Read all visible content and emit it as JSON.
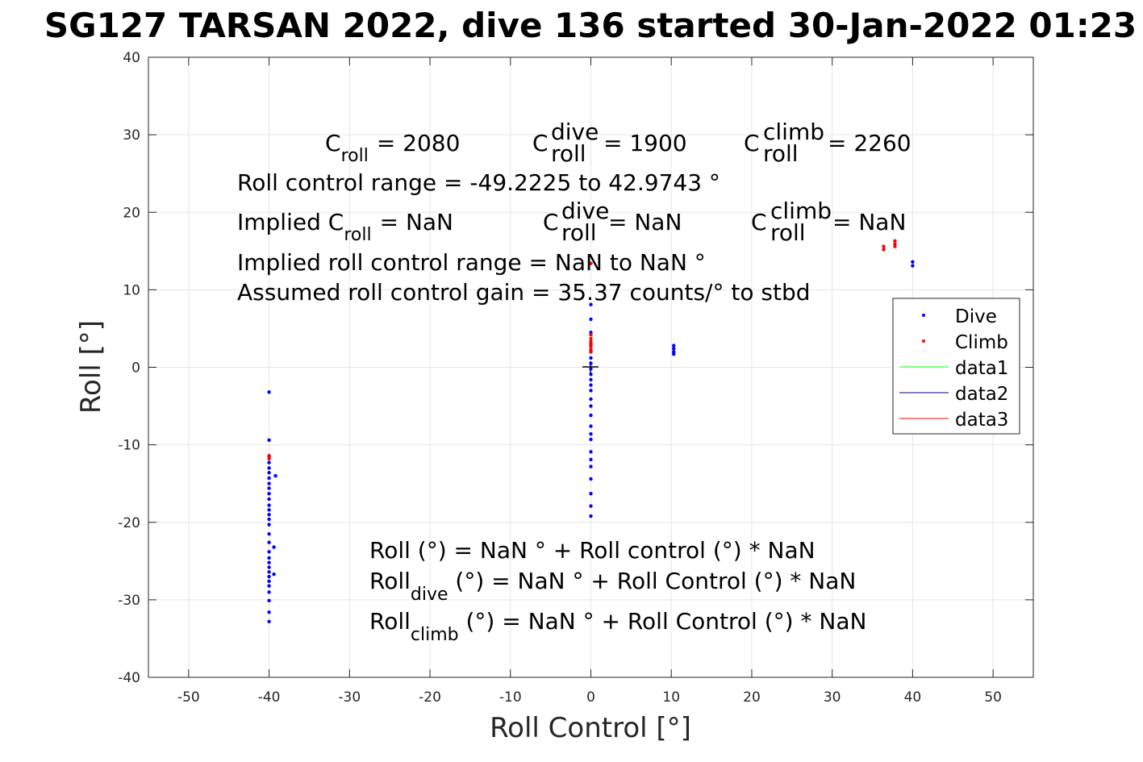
{
  "chart_data": {
    "type": "scatter",
    "title": "SG127 TARSAN 2022, dive 136 started 30-Jan-2022 01:23",
    "xlabel": "Roll Control [°]",
    "ylabel": "Roll [°]",
    "xlim": [
      -55,
      55
    ],
    "ylim": [
      -40,
      40
    ],
    "xticks": [
      -50,
      -40,
      -30,
      -20,
      -10,
      0,
      10,
      20,
      30,
      40,
      50
    ],
    "yticks": [
      -40,
      -30,
      -20,
      -10,
      0,
      10,
      20,
      30,
      40
    ],
    "grid": true,
    "legend_position": "right",
    "series": [
      {
        "name": "Dive",
        "color": "#0000ff",
        "marker": "point",
        "points": [
          [
            -40.0,
            -3.2
          ],
          [
            -40.0,
            -9.4
          ],
          [
            -40.0,
            -11.5
          ],
          [
            -40.0,
            -12.3
          ],
          [
            -40.0,
            -13.0
          ],
          [
            -40.0,
            -13.6
          ],
          [
            -40.0,
            -14.3
          ],
          [
            -40.0,
            -15.0
          ],
          [
            -40.0,
            -15.6
          ],
          [
            -40.0,
            -16.3
          ],
          [
            -40.0,
            -17.0
          ],
          [
            -40.0,
            -17.8
          ],
          [
            -40.0,
            -18.4
          ],
          [
            -40.0,
            -19.0
          ],
          [
            -40.0,
            -19.6
          ],
          [
            -40.0,
            -20.3
          ],
          [
            -40.0,
            -21.5
          ],
          [
            -40.0,
            -22.6
          ],
          [
            -40.0,
            -23.8
          ],
          [
            -40.0,
            -24.6
          ],
          [
            -40.0,
            -25.2
          ],
          [
            -40.0,
            -25.8
          ],
          [
            -40.0,
            -26.4
          ],
          [
            -40.0,
            -27.0
          ],
          [
            -40.0,
            -27.6
          ],
          [
            -40.0,
            -28.2
          ],
          [
            -40.0,
            -29.0
          ],
          [
            -40.0,
            -30.1
          ],
          [
            -40.0,
            -31.6
          ],
          [
            -40.0,
            -32.8
          ],
          [
            -39.2,
            -14.0
          ],
          [
            -39.4,
            -23.2
          ],
          [
            -39.4,
            -26.7
          ],
          [
            0.0,
            8.1
          ],
          [
            0.0,
            6.2
          ],
          [
            0.0,
            4.5
          ],
          [
            0.0,
            3.0
          ],
          [
            0.0,
            2.0
          ],
          [
            0.0,
            1.2
          ],
          [
            0.0,
            0.5
          ],
          [
            0.0,
            -0.2
          ],
          [
            0.0,
            -0.9
          ],
          [
            0.0,
            -1.6
          ],
          [
            0.0,
            -2.3
          ],
          [
            0.0,
            -3.0
          ],
          [
            0.0,
            -4.1
          ],
          [
            0.0,
            -5.0
          ],
          [
            0.0,
            -6.2
          ],
          [
            0.0,
            -7.6
          ],
          [
            0.0,
            -8.6
          ],
          [
            0.0,
            -9.3
          ],
          [
            0.0,
            -10.9
          ],
          [
            0.0,
            -11.9
          ],
          [
            0.0,
            -12.8
          ],
          [
            0.0,
            -14.4
          ],
          [
            0.0,
            -16.3
          ],
          [
            0.0,
            -17.9
          ],
          [
            0.0,
            -19.2
          ],
          [
            10.3,
            2.8
          ],
          [
            10.3,
            2.4
          ],
          [
            10.3,
            2.0
          ],
          [
            10.3,
            1.7
          ],
          [
            40.0,
            13.6
          ],
          [
            40.0,
            13.1
          ]
        ]
      },
      {
        "name": "Climb",
        "color": "#ff0000",
        "marker": "point",
        "points": [
          [
            -40.0,
            -11.4
          ],
          [
            -40.0,
            -11.8
          ],
          [
            0.0,
            13.4
          ],
          [
            0.0,
            4.2
          ],
          [
            0.0,
            3.7
          ],
          [
            0.0,
            3.3
          ],
          [
            0.0,
            3.0
          ],
          [
            0.0,
            2.7
          ],
          [
            0.0,
            2.3
          ],
          [
            0.0,
            2.0
          ],
          [
            36.4,
            15.6
          ],
          [
            36.4,
            15.2
          ],
          [
            37.8,
            16.3
          ],
          [
            37.8,
            15.9
          ],
          [
            37.8,
            15.6
          ]
        ]
      },
      {
        "name": "data1",
        "color": "#00ff00",
        "type": "line",
        "values": []
      },
      {
        "name": "data2",
        "color": "#000080",
        "type": "line",
        "values": []
      },
      {
        "name": "data3",
        "color": "#ff0000",
        "type": "line",
        "values": []
      }
    ],
    "annotations": {
      "c_roll_label": "C",
      "c_roll_sub": "roll",
      "c_roll_value": "= 2080",
      "c_roll_dive_sup": "dive",
      "c_roll_dive_value": "= 1900",
      "c_roll_climb_sup": "climb",
      "c_roll_climb_value": "= 2260",
      "roll_control_range": "Roll control range = -49.2225 to 42.9743 °",
      "implied_prefix": "Implied C",
      "implied_value": "=  NaN",
      "implied_dive_value": "=  NaN",
      "implied_climb_value": "=  NaN",
      "implied_range": "Implied roll control range = NaN to NaN °",
      "assumed_gain": "Assumed roll control gain = 35.37 counts/° to stbd",
      "eq1": "Roll (°) = NaN ° + Roll control (°) * NaN",
      "eq2_main": "Roll",
      "eq2_sub": "dive",
      "eq2_rest": " (°) = NaN ° + Roll Control (°) * NaN",
      "eq3_main": "Roll",
      "eq3_sub": "climb",
      "eq3_rest": " (°) = NaN ° + Roll Control (°) * NaN"
    }
  }
}
